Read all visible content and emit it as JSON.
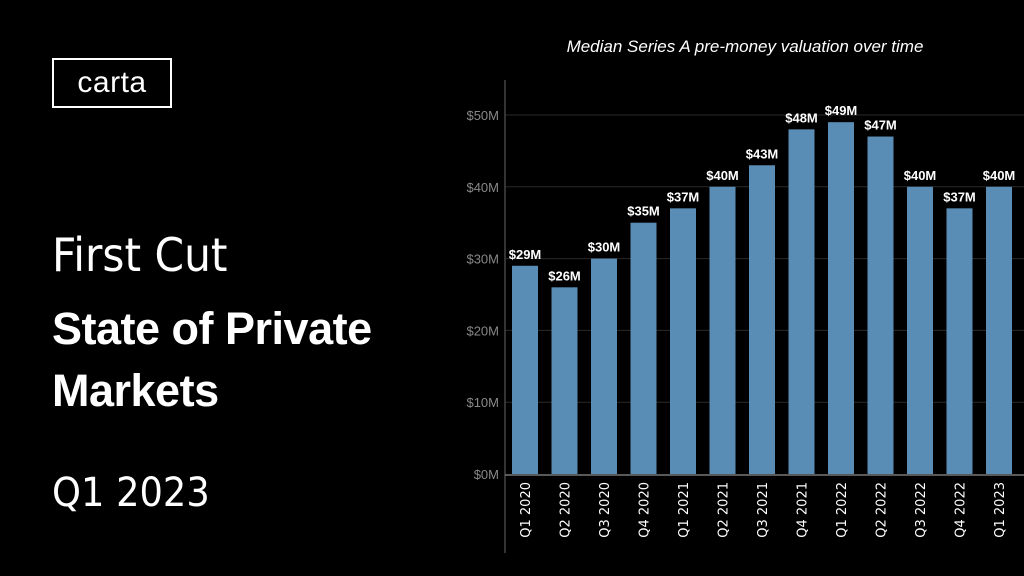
{
  "slide": {
    "logo": "carta",
    "eyebrow": "First Cut",
    "title_line1": "State of Private",
    "title_line2": "Markets",
    "period": "Q1 2023"
  },
  "chart_data": {
    "type": "bar",
    "title": "Median Series A pre-money valuation over time",
    "xlabel": "",
    "ylabel": "",
    "ylim": [
      0,
      50
    ],
    "yticks": [
      "$0M",
      "$10M",
      "$20M",
      "$30M",
      "$40M",
      "$50M"
    ],
    "grid": true,
    "categories": [
      "Q1 2020",
      "Q2 2020",
      "Q3 2020",
      "Q4 2020",
      "Q1 2021",
      "Q2 2021",
      "Q3 2021",
      "Q4 2021",
      "Q1 2022",
      "Q2 2022",
      "Q3 2022",
      "Q4 2022",
      "Q1 2023"
    ],
    "values": [
      29,
      26,
      30,
      35,
      37,
      40,
      43,
      48,
      49,
      47,
      40,
      37,
      40
    ],
    "data_labels": [
      "$29M",
      "$26M",
      "$30M",
      "$35M",
      "$37M",
      "$40M",
      "$43M",
      "$48M",
      "$49M",
      "$47M",
      "$40M",
      "$37M",
      "$40M"
    ],
    "bar_color": "#5a8db5",
    "background": "#000000"
  }
}
